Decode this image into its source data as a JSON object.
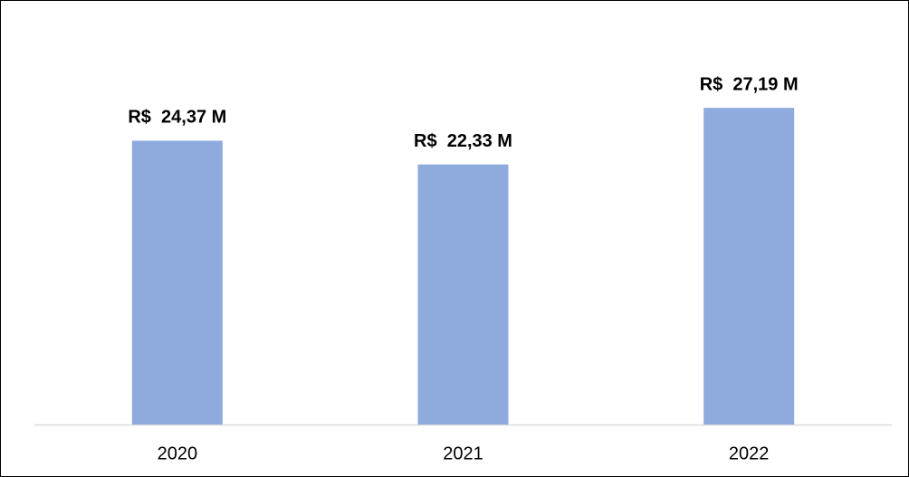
{
  "chart_data": {
    "type": "bar",
    "categories": [
      "2020",
      "2021",
      "2022"
    ],
    "values": [
      24.37,
      22.33,
      27.19
    ],
    "value_labels": [
      "R$  24,37 M",
      "R$  22,33 M",
      "R$  27,19 M"
    ],
    "color": "#8faadc",
    "ylim": [
      0,
      30
    ]
  }
}
